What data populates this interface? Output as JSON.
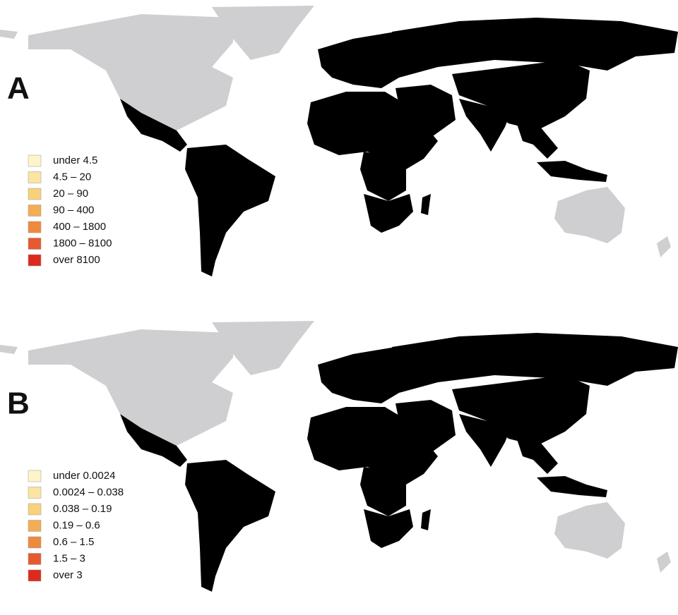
{
  "panels": [
    {
      "label": "A",
      "legend": [
        {
          "label": "under 4.5",
          "color": "#fdf5c9"
        },
        {
          "label": "4.5 – 20",
          "color": "#fbe5a0"
        },
        {
          "label": "20 – 90",
          "color": "#f8d27a"
        },
        {
          "label": "90 – 400",
          "color": "#f3ad55"
        },
        {
          "label": "400 – 1800",
          "color": "#ee8a3e"
        },
        {
          "label": "1800 – 8100",
          "color": "#e55a2e"
        },
        {
          "label": "over 8100",
          "color": "#dd2a1e"
        }
      ]
    },
    {
      "label": "B",
      "legend": [
        {
          "label": "under 0.0024",
          "color": "#fdf5c9"
        },
        {
          "label": "0.0024 – 0.038",
          "color": "#fbe5a0"
        },
        {
          "label": "0.038 – 0.19",
          "color": "#f8d27a"
        },
        {
          "label": "0.19 – 0.6",
          "color": "#f3ad55"
        },
        {
          "label": "0.6 – 1.5",
          "color": "#ee8a3e"
        },
        {
          "label": "1.5 – 3",
          "color": "#e55a2e"
        },
        {
          "label": "over 3",
          "color": "#dd2a1e"
        }
      ]
    }
  ]
}
